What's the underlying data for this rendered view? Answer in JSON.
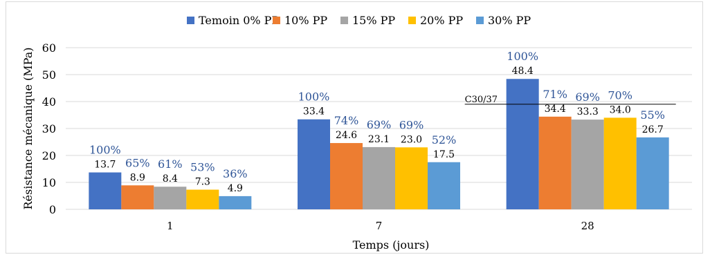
{
  "chart_data": {
    "type": "bar",
    "title": "",
    "xlabel": "Temps (jours)",
    "ylabel": "Résistance mécanique (MPa)",
    "ylim": [
      0,
      60
    ],
    "yticks": [
      "0",
      "10",
      "20",
      "30",
      "40",
      "50",
      "60"
    ],
    "categories": [
      "1",
      "7",
      "28"
    ],
    "legend_position": "top",
    "grid": "horizontal",
    "series": [
      {
        "name": "Temoin 0% PP",
        "color": "#4472c4",
        "values": [
          13.7,
          33.4,
          48.4
        ],
        "value_labels": [
          "13.7",
          "33.4",
          "48.4"
        ],
        "percent_labels": [
          "100%",
          "100%",
          "100%"
        ]
      },
      {
        "name": "10% PP",
        "color": "#ed7d31",
        "values": [
          8.9,
          24.6,
          34.4
        ],
        "value_labels": [
          "8.9",
          "24.6",
          "34.4"
        ],
        "percent_labels": [
          "65%",
          "74%",
          "71%"
        ]
      },
      {
        "name": "15% PP",
        "color": "#a5a5a5",
        "values": [
          8.4,
          23.1,
          33.3
        ],
        "value_labels": [
          "8.4",
          "23.1",
          "33.3"
        ],
        "percent_labels": [
          "61%",
          "69%",
          "69%"
        ]
      },
      {
        "name": "20% PP",
        "color": "#ffc000",
        "values": [
          7.3,
          23.0,
          34.0
        ],
        "value_labels": [
          "7.3",
          "23.0",
          "34.0"
        ],
        "percent_labels": [
          "53%",
          "69%",
          "70%"
        ]
      },
      {
        "name": "30% PP",
        "color": "#5b9bd5",
        "values": [
          4.9,
          17.5,
          26.7
        ],
        "value_labels": [
          "4.9",
          "17.5",
          "26.7"
        ],
        "percent_labels": [
          "36%",
          "52%",
          "55%"
        ]
      }
    ],
    "reference_line": {
      "label": "C30/37",
      "value": 39,
      "category": "28"
    },
    "percent_label_color": "#2f5597",
    "gridline_color": "#d9d9d9"
  }
}
